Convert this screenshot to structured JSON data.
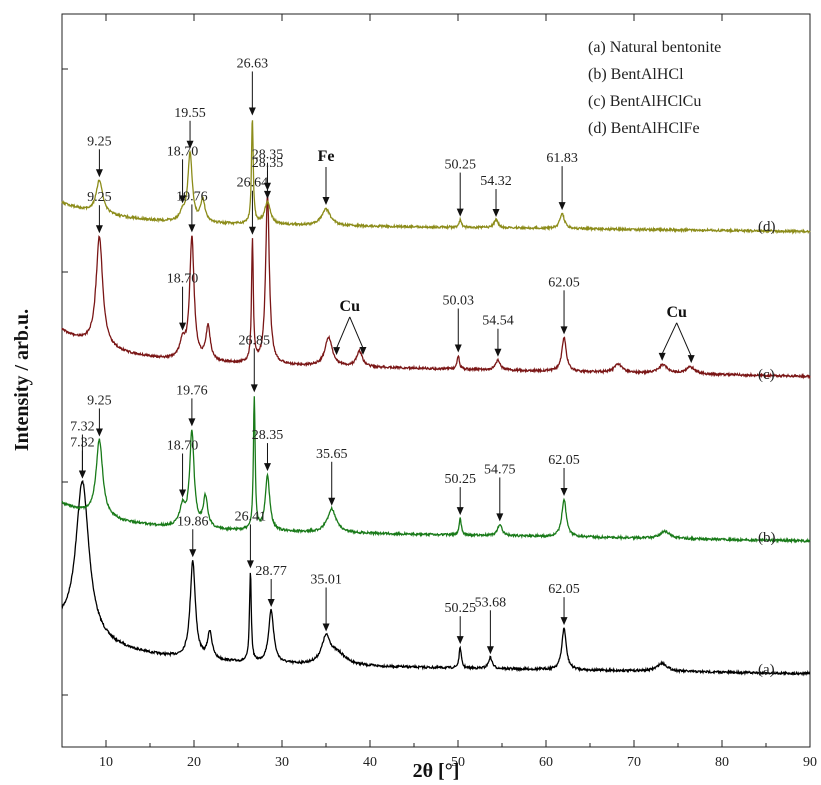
{
  "chart_data": {
    "type": "line",
    "xlabel": "2θ [°]",
    "ylabel": "Intensity / arb.u.",
    "xlim": [
      5,
      90
    ],
    "xticks": [
      10,
      20,
      30,
      40,
      50,
      60,
      70,
      80,
      90
    ],
    "legend": {
      "placement": "top-right",
      "entries": [
        "(a) Natural bentonite",
        "(b) BentAlHCl",
        "(c) BentAlHClCu",
        "(d) BentAlHClFe"
      ]
    },
    "series": [
      {
        "name": "(a) Natural bentonite",
        "tag": "(a)",
        "color": "#000000",
        "baseline": 0.04,
        "tilt": 0.07,
        "bg_start": 0.22,
        "bg_decay": 7.5,
        "peaks": [
          {
            "pos": 7.32,
            "height": 0.97,
            "width": 0.9
          },
          {
            "pos": 19.86,
            "height": 0.61,
            "width": 0.35
          },
          {
            "pos": 21.8,
            "height": 0.17,
            "width": 0.3
          },
          {
            "pos": 26.41,
            "height": 0.56,
            "width": 0.12
          },
          {
            "pos": 28.77,
            "height": 0.33,
            "width": 0.35
          },
          {
            "pos": 35.01,
            "height": 0.16,
            "width": 0.6
          },
          {
            "pos": 36.3,
            "height": 0.07,
            "width": 1.2
          },
          {
            "pos": 50.25,
            "height": 0.13,
            "width": 0.15
          },
          {
            "pos": 53.68,
            "height": 0.07,
            "width": 0.25
          },
          {
            "pos": 62.05,
            "height": 0.26,
            "width": 0.3
          },
          {
            "pos": 73.2,
            "height": 0.05,
            "width": 0.7
          }
        ],
        "annotations": [
          {
            "text": "7.32",
            "pos": 7.32
          },
          {
            "text": "7.32",
            "pos": 7.32
          },
          {
            "text": "19.86",
            "pos": 19.86
          },
          {
            "text": "26.41",
            "pos": 26.41
          },
          {
            "text": "28.77",
            "pos": 28.77
          },
          {
            "text": "35.01",
            "pos": 35.01
          },
          {
            "text": "50.25",
            "pos": 50.25
          },
          {
            "text": "53.68",
            "pos": 53.68
          },
          {
            "text": "62.05",
            "pos": 62.05
          }
        ]
      },
      {
        "name": "(b) BentAlHCl",
        "tag": "(b)",
        "color": "#197a19",
        "baseline": 0.05,
        "tilt": 0.09,
        "bg_start": 0.18,
        "bg_decay": 6,
        "peaks": [
          {
            "pos": 9.25,
            "height": 0.55,
            "width": 0.45
          },
          {
            "pos": 18.7,
            "height": 0.14,
            "width": 0.4
          },
          {
            "pos": 19.76,
            "height": 0.68,
            "width": 0.3
          },
          {
            "pos": 21.3,
            "height": 0.22,
            "width": 0.3
          },
          {
            "pos": 26.85,
            "height": 0.95,
            "width": 0.12
          },
          {
            "pos": 28.35,
            "height": 0.4,
            "width": 0.3
          },
          {
            "pos": 35.65,
            "height": 0.17,
            "width": 0.6
          },
          {
            "pos": 50.25,
            "height": 0.12,
            "width": 0.15
          },
          {
            "pos": 54.75,
            "height": 0.08,
            "width": 0.3
          },
          {
            "pos": 62.05,
            "height": 0.27,
            "width": 0.3
          },
          {
            "pos": 73.5,
            "height": 0.05,
            "width": 0.7
          }
        ],
        "annotations": [
          {
            "text": "9.25",
            "pos": 9.25
          },
          {
            "text": "18.70",
            "pos": 18.7
          },
          {
            "text": "19.76",
            "pos": 19.76
          },
          {
            "text": "26.85",
            "pos": 26.85
          },
          {
            "text": "28.35",
            "pos": 28.35
          },
          {
            "text": "35.65",
            "pos": 35.65
          },
          {
            "text": "50.25",
            "pos": 50.25
          },
          {
            "text": "54.75",
            "pos": 54.75
          },
          {
            "text": "62.05",
            "pos": 62.05
          }
        ]
      },
      {
        "name": "(c) BentAlHClCu",
        "tag": "(c)",
        "color": "#7a1616",
        "baseline": 0.05,
        "tilt": 0.09,
        "bg_start": 0.18,
        "bg_decay": 6,
        "peaks": [
          {
            "pos": 9.25,
            "height": 0.65,
            "width": 0.45
          },
          {
            "pos": 18.7,
            "height": 0.1,
            "width": 0.4
          },
          {
            "pos": 19.76,
            "height": 0.72,
            "width": 0.3
          },
          {
            "pos": 21.6,
            "height": 0.2,
            "width": 0.3
          },
          {
            "pos": 26.64,
            "height": 0.72,
            "width": 0.12
          },
          {
            "pos": 28.35,
            "height": 1.0,
            "width": 0.25
          },
          {
            "pos": 35.3,
            "height": 0.17,
            "width": 0.5
          },
          {
            "pos": 38.8,
            "height": 0.09,
            "width": 0.4
          },
          {
            "pos": 50.03,
            "height": 0.08,
            "width": 0.15
          },
          {
            "pos": 54.54,
            "height": 0.06,
            "width": 0.3
          },
          {
            "pos": 62.05,
            "height": 0.2,
            "width": 0.3
          },
          {
            "pos": 68.2,
            "height": 0.05,
            "width": 0.5
          },
          {
            "pos": 73.3,
            "height": 0.05,
            "width": 0.6
          },
          {
            "pos": 76.4,
            "height": 0.04,
            "width": 0.6
          }
        ],
        "annotations": [
          {
            "text": "9.25",
            "pos": 9.25
          },
          {
            "text": "18.70",
            "pos": 18.7
          },
          {
            "text": "19.76",
            "pos": 19.76
          },
          {
            "text": "26.64",
            "pos": 26.64
          },
          {
            "text": "28.35",
            "pos": 28.35
          },
          {
            "text": "50.03",
            "pos": 50.03
          },
          {
            "text": "54.54",
            "pos": 54.54
          },
          {
            "text": "62.05",
            "pos": 62.05
          }
        ],
        "phase_markers": [
          {
            "text": "Cu",
            "positions": [
              36.2,
              39.2
            ]
          },
          {
            "text": "Cu",
            "positions": [
              73.2,
              76.5
            ]
          }
        ]
      },
      {
        "name": "(d) BentAlHClFe",
        "tag": "(d)",
        "color": "#8c8c1a",
        "baseline": 0.05,
        "tilt": 0.08,
        "bg_start": 0.18,
        "bg_decay": 6,
        "peaks": [
          {
            "pos": 9.25,
            "height": 0.3,
            "width": 0.45
          },
          {
            "pos": 18.7,
            "height": 0.07,
            "width": 0.4
          },
          {
            "pos": 19.55,
            "height": 0.62,
            "width": 0.3
          },
          {
            "pos": 21.0,
            "height": 0.2,
            "width": 0.3
          },
          {
            "pos": 26.63,
            "height": 0.95,
            "width": 0.12
          },
          {
            "pos": 28.35,
            "height": 0.2,
            "width": 0.4
          },
          {
            "pos": 35.0,
            "height": 0.15,
            "width": 0.6
          },
          {
            "pos": 50.25,
            "height": 0.07,
            "width": 0.15
          },
          {
            "pos": 54.32,
            "height": 0.07,
            "width": 0.3
          },
          {
            "pos": 61.83,
            "height": 0.14,
            "width": 0.3
          }
        ],
        "annotations": [
          {
            "text": "9.25",
            "pos": 9.25
          },
          {
            "text": "18.70",
            "pos": 18.7
          },
          {
            "text": "19.55",
            "pos": 19.55
          },
          {
            "text": "26.63",
            "pos": 26.63
          },
          {
            "text": "28.35",
            "pos": 28.35
          },
          {
            "text": "50.25",
            "pos": 50.25
          },
          {
            "text": "54.32",
            "pos": 54.32
          },
          {
            "text": "61.83",
            "pos": 61.83
          }
        ],
        "phase_markers": [
          {
            "text": "Fe",
            "positions": [
              35.0
            ]
          }
        ]
      }
    ]
  }
}
